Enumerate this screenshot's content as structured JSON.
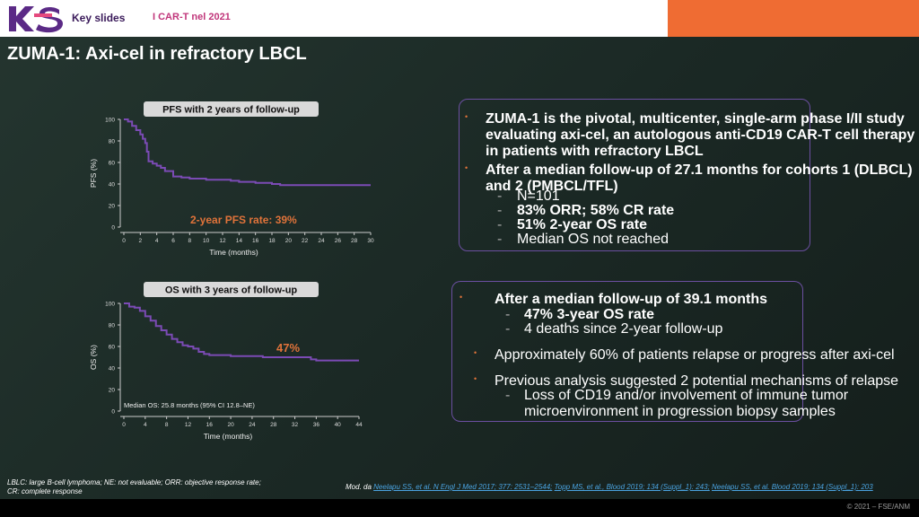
{
  "header": {
    "logo_text": "KS",
    "section": "Key slides",
    "topic": "I CAR-T nel 2021"
  },
  "slide_title": "ZUMA-1: Axi-cel in refractory LBCL",
  "colors": {
    "curve": "#7b4bb5",
    "accent": "#e0733a",
    "box_border": "#6b4fa0",
    "header_accent": "#ef6c33"
  },
  "chart_data": [
    {
      "type": "line",
      "title": "PFS with 2 years of follow-up",
      "xlabel": "Time (months)",
      "ylabel": "PFS (%)",
      "xticks": [
        0,
        2,
        4,
        6,
        8,
        10,
        12,
        14,
        16,
        18,
        20,
        22,
        24,
        26,
        28,
        30
      ],
      "yticks": [
        0,
        20,
        40,
        60,
        80,
        100
      ],
      "xlim": [
        0,
        30
      ],
      "ylim": [
        0,
        100
      ],
      "annotation": "2-year PFS rate: 39%",
      "series": [
        {
          "x": [
            0,
            0.5,
            1,
            1.5,
            2,
            2.3,
            2.6,
            2.8,
            3,
            3.5,
            4,
            4.5,
            5,
            6,
            7,
            8,
            9,
            10,
            11,
            12,
            13,
            14,
            15,
            16,
            17,
            18,
            19,
            20,
            21,
            22,
            23,
            24,
            25,
            26,
            27,
            28,
            29,
            30
          ],
          "y": [
            100,
            98,
            94,
            90,
            86,
            82,
            78,
            70,
            61,
            59,
            57,
            55,
            52,
            47,
            46,
            45,
            45,
            44,
            44,
            44,
            43,
            42,
            42,
            41,
            41,
            40,
            39,
            39,
            39,
            39,
            39,
            39,
            39,
            39,
            39,
            39,
            39,
            39
          ]
        }
      ]
    },
    {
      "type": "line",
      "title": "OS with 3 years of follow-up",
      "xlabel": "Time (months)",
      "ylabel": "OS (%)",
      "xticks": [
        0,
        4,
        8,
        12,
        16,
        20,
        24,
        28,
        32,
        36,
        40,
        44
      ],
      "yticks": [
        0,
        20,
        40,
        60,
        80,
        100
      ],
      "xlim": [
        0,
        44
      ],
      "ylim": [
        0,
        100
      ],
      "annotation": "47%",
      "note": "Median OS: 25.8 months (95% CI 12.8–NE)",
      "series": [
        {
          "x": [
            0,
            1,
            2,
            3,
            4,
            5,
            6,
            7,
            8,
            9,
            10,
            11,
            12,
            13,
            14,
            15,
            16,
            17,
            18,
            20,
            22,
            24,
            26,
            28,
            30,
            32,
            34,
            35,
            36,
            38,
            40,
            42,
            44
          ],
          "y": [
            100,
            97,
            96,
            93,
            88,
            84,
            79,
            75,
            71,
            67,
            64,
            61,
            60,
            58,
            55,
            53,
            52,
            52,
            52,
            51,
            51,
            51,
            50,
            50,
            50,
            50,
            50,
            48,
            47,
            47,
            47,
            47,
            47
          ]
        }
      ]
    }
  ],
  "box1": {
    "bullet1": [
      "ZUMA-1 is the pivotal, multicenter, single-arm phase I/II study",
      "evaluating axi-cel, an autologous anti-CD19 CAR-T cell therapy",
      "in patients with refractory LBCL"
    ],
    "bullet2": [
      "After a median follow-up of 27.1 months for cohorts 1 (DLBCL)",
      "and 2 (PMBCL/TFL)"
    ],
    "sub": [
      "N=101",
      "83% ORR; 58% CR rate",
      "51% 2-year OS rate",
      "Median OS not reached"
    ]
  },
  "box2": {
    "bullet1": "After a median follow-up of 39.1 months",
    "sub1": [
      "47% 3-year OS rate",
      "4 deaths since 2-year follow-up"
    ],
    "bullet2": "Approximately 60% of patients relapse or progress after axi-cel",
    "bullet3": "Previous analysis suggested 2 potential mechanisms of relapse",
    "sub3": [
      "Loss of CD19 and/or involvement of immune tumor",
      "microenvironment in progression biopsy samples"
    ]
  },
  "footnote": [
    "LBLC: large B-cell lymphoma; NE: not evaluable; ORR: objective response rate;",
    "CR: complete response"
  ],
  "refs": {
    "prefix": "Mod. da ",
    "r1": "Neelapu SS, et al. N Engl J Med 2017; 377: 2531–2544;",
    "r2": "Topp MS, et al., Blood 2019; 134 (Suppl_1): 243;",
    "r3": "Neelapu SS, et al. Blood 2019; 134 (Suppl_1): 203"
  },
  "copyright": "© 2021 – FSE/ANM"
}
